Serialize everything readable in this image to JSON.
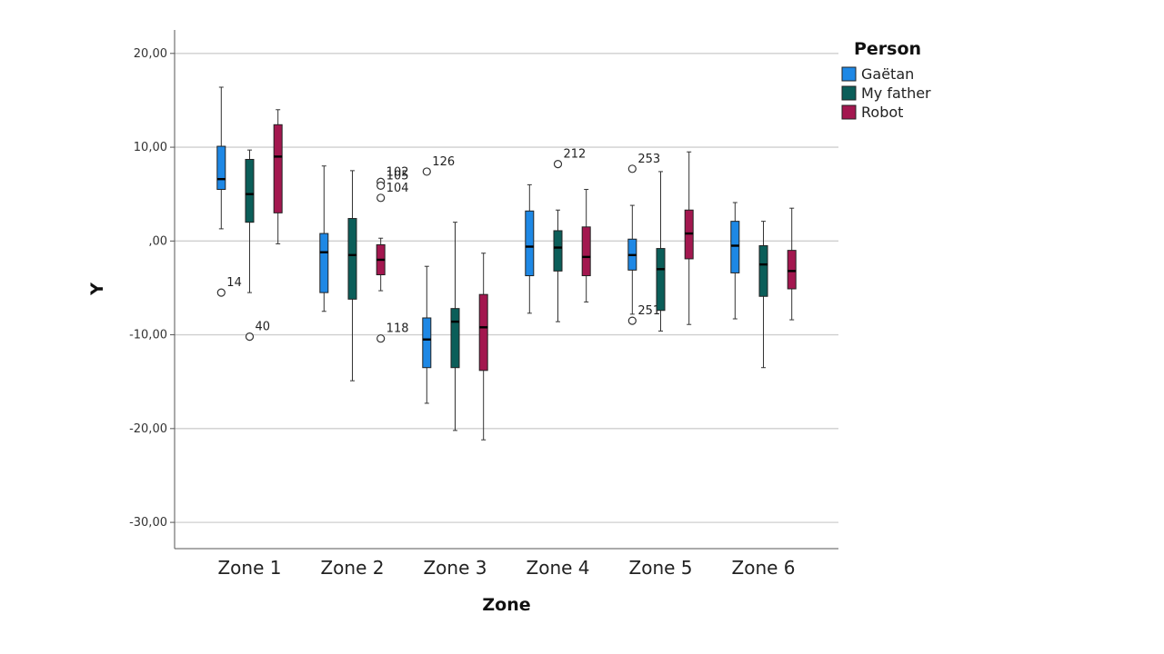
{
  "chart_data": {
    "type": "boxplot",
    "xlabel": "Zone",
    "ylabel": "Y",
    "ylim": [
      -32.8,
      22.5
    ],
    "y_ticks": [
      20,
      10,
      0,
      -10,
      -20,
      -30
    ],
    "y_tick_labels": [
      "20,00",
      "10,00",
      ",00",
      "-10,00",
      "-20,00",
      "-30,00"
    ],
    "grid": true,
    "legend": {
      "title": "Person",
      "placement": "top-right"
    },
    "categories": [
      "Zone 1",
      "Zone 2",
      "Zone 3",
      "Zone 4",
      "Zone 5",
      "Zone 6"
    ],
    "series": [
      {
        "name": "Gaëtan",
        "color": "#1e88e5",
        "boxes": [
          {
            "min": 1.3,
            "q1": 5.5,
            "median": 6.6,
            "q3": 10.1,
            "max": 16.4,
            "outliers": [
              {
                "value": -5.5,
                "label": "14"
              }
            ]
          },
          {
            "min": -7.5,
            "q1": -5.5,
            "median": -1.2,
            "q3": 0.8,
            "max": 8.0,
            "outliers": []
          },
          {
            "min": -17.3,
            "q1": -13.5,
            "median": -10.5,
            "q3": -8.2,
            "max": -2.7,
            "outliers": [
              {
                "value": 7.4,
                "label": "126"
              }
            ]
          },
          {
            "min": -7.7,
            "q1": -3.7,
            "median": -0.6,
            "q3": 3.2,
            "max": 6.0,
            "outliers": []
          },
          {
            "min": -7.8,
            "q1": -3.1,
            "median": -1.5,
            "q3": 0.2,
            "max": 3.8,
            "outliers": [
              {
                "value": 7.7,
                "label": "253"
              },
              {
                "value": -8.5,
                "label": "251"
              }
            ]
          },
          {
            "min": -8.3,
            "q1": -3.4,
            "median": -0.5,
            "q3": 2.1,
            "max": 4.1,
            "outliers": []
          }
        ]
      },
      {
        "name": "My father",
        "color": "#0b5e59",
        "boxes": [
          {
            "min": -5.5,
            "q1": 2.0,
            "median": 5.0,
            "q3": 8.7,
            "max": 9.7,
            "outliers": [
              {
                "value": -10.2,
                "label": "40"
              }
            ]
          },
          {
            "min": -14.9,
            "q1": -6.2,
            "median": -1.5,
            "q3": 2.4,
            "max": 7.5,
            "outliers": []
          },
          {
            "min": -20.2,
            "q1": -13.5,
            "median": -8.6,
            "q3": -7.2,
            "max": 2.0,
            "outliers": []
          },
          {
            "min": -8.6,
            "q1": -3.2,
            "median": -0.7,
            "q3": 1.1,
            "max": 3.3,
            "outliers": [
              {
                "value": 8.2,
                "label": "212"
              }
            ]
          },
          {
            "min": -9.6,
            "q1": -7.4,
            "median": -3.0,
            "q3": -0.8,
            "max": 7.4,
            "outliers": []
          },
          {
            "min": -13.5,
            "q1": -5.9,
            "median": -2.5,
            "q3": -0.5,
            "max": 2.1,
            "outliers": []
          }
        ]
      },
      {
        "name": "Robot",
        "color": "#a3174f",
        "boxes": [
          {
            "min": -0.3,
            "q1": 3.0,
            "median": 9.0,
            "q3": 12.4,
            "max": 14.0,
            "outliers": []
          },
          {
            "min": -5.3,
            "q1": -3.6,
            "median": -2.0,
            "q3": -0.4,
            "max": 0.3,
            "outliers": [
              {
                "value": 6.3,
                "label": "102"
              },
              {
                "value": 5.9,
                "label": "105"
              },
              {
                "value": 4.6,
                "label": "104"
              },
              {
                "value": -10.4,
                "label": "118"
              }
            ]
          },
          {
            "min": -21.2,
            "q1": -13.8,
            "median": -9.2,
            "q3": -5.7,
            "max": -1.3,
            "outliers": []
          },
          {
            "min": -6.5,
            "q1": -3.7,
            "median": -1.7,
            "q3": 1.5,
            "max": 5.5,
            "outliers": []
          },
          {
            "min": -8.9,
            "q1": -1.9,
            "median": 0.8,
            "q3": 3.3,
            "max": 9.5,
            "outliers": []
          },
          {
            "min": -8.4,
            "q1": -5.1,
            "median": -3.2,
            "q3": -1.0,
            "max": 3.5,
            "outliers": []
          }
        ]
      }
    ]
  }
}
